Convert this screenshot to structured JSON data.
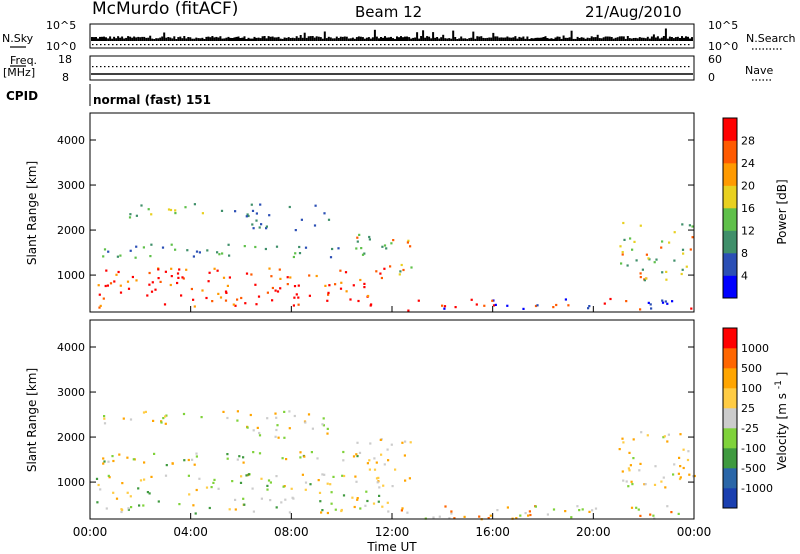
{
  "header": {
    "station": "McMurdo (fitACF)",
    "beam": "Beam 12",
    "date": "21/Aug/2010"
  },
  "top_panel": {
    "left_label": "N.Sky",
    "left_ticks": [
      "10^5",
      "10^0"
    ],
    "right_ticks": [
      "10^5",
      "10^0"
    ],
    "right_label": "N.Search"
  },
  "freq_panel": {
    "left_label_1": "Freq.",
    "left_label_2": "[MHz]",
    "left_ticks": [
      "18",
      "8"
    ],
    "right_ticks": [
      "60",
      "0"
    ],
    "right_label": "Nave"
  },
  "cpid": {
    "label": "CPID",
    "text": "normal (fast) 151"
  },
  "colors": {
    "power": [
      "#0000ff",
      "#2b4fb5",
      "#3f8f6a",
      "#5fc04a",
      "#e8d020",
      "#ff9a00",
      "#ff5a00",
      "#ff0000"
    ],
    "velocity": [
      "#ff0000",
      "#ff6600",
      "#ffa500",
      "#ffcc44",
      "#cccccc",
      "#7fd23a",
      "#3f9a3f",
      "#2a66a8",
      "#1a3fb0"
    ]
  },
  "chart_data": [
    {
      "type": "heatmap",
      "variable": "power",
      "ylabel": "Slant Range [km]",
      "ylim": [
        180,
        4600
      ],
      "yticks": [
        "1000",
        "2000",
        "3000",
        "4000"
      ],
      "xlim": [
        0,
        24
      ],
      "colorbar_label": "Power [dB]",
      "colorbar_ticks": [
        "4",
        "8",
        "12",
        "16",
        "20",
        "24",
        "28"
      ]
    },
    {
      "type": "heatmap",
      "variable": "velocity",
      "ylabel": "Slant Range [km]",
      "ylim": [
        180,
        4600
      ],
      "yticks": [
        "1000",
        "2000",
        "3000",
        "4000"
      ],
      "xlim": [
        0,
        24
      ],
      "xticks": [
        "00:00",
        "04:00",
        "08:00",
        "12:00",
        "16:00",
        "20:00",
        "00:00"
      ],
      "xlabel": "Time UT",
      "colorbar_label": "Velocity [m s",
      "colorbar_label_sup": "-1",
      "colorbar_label_end": "]",
      "colorbar_ticks": [
        "1000",
        "500",
        "100",
        "25",
        "-25",
        "-100",
        "-500",
        "-1000"
      ]
    }
  ]
}
